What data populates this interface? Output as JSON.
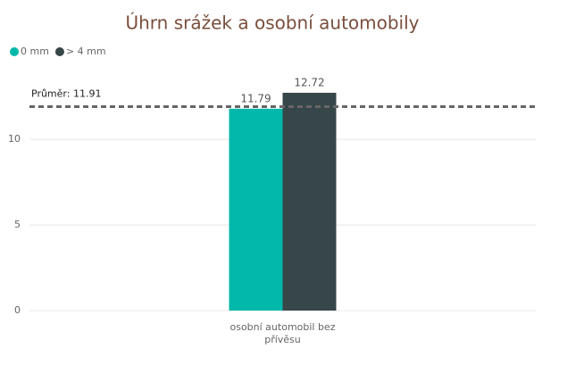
{
  "chart_data": {
    "type": "bar",
    "title": "Úhrn srážek a osobní automobily",
    "categories": [
      "osobní automobil bez přívěsu"
    ],
    "series": [
      {
        "name": "0 mm",
        "color": "#01B8AA",
        "values": [
          11.79
        ]
      },
      {
        "name": "> 4 mm",
        "color": "#374649",
        "values": [
          12.72
        ]
      }
    ],
    "ylim": [
      0,
      13.5
    ],
    "yticks": [
      0,
      5,
      10
    ],
    "grid": true,
    "legend": "top-left",
    "average": {
      "label": "Průměr:",
      "value": 11.91
    }
  }
}
